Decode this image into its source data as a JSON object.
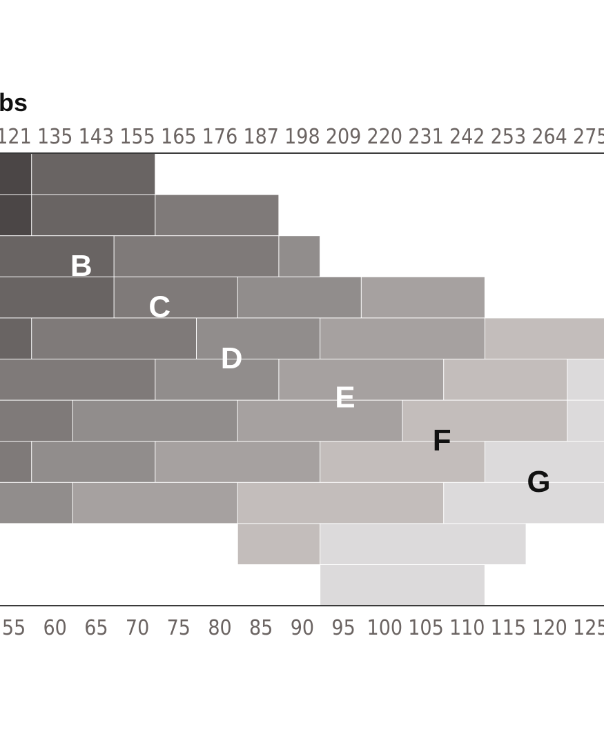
{
  "chart_data": {
    "type": "heatmap",
    "title": "",
    "unit_label": "bs",
    "top_axis": {
      "ticks": [
        "121",
        "135",
        "143",
        "155",
        "165",
        "176",
        "187",
        "198",
        "209",
        "220",
        "231",
        "242",
        "253",
        "264",
        "275"
      ]
    },
    "bottom_axis": {
      "ticks": [
        "55",
        "60",
        "65",
        "70",
        "75",
        "80",
        "85",
        "90",
        "95",
        "100",
        "105",
        "110",
        "115",
        "120",
        "125"
      ]
    },
    "rows": 11,
    "colors": {
      "A": "#4b4646",
      "B": "#696463",
      "C": "#7f7a79",
      "D": "#918d8c",
      "E": "#a6a1a0",
      "F": "#c3bdbb",
      "G": "#dcdadb",
      "axis": "#3a3a3a",
      "tick_text": "#6b6462"
    },
    "blocks": [
      {
        "row": 0,
        "from": 0,
        "to": 1,
        "zone": "A"
      },
      {
        "row": 0,
        "from": 1,
        "to": 4,
        "zone": "B"
      },
      {
        "row": 1,
        "from": 0,
        "to": 1,
        "zone": "A"
      },
      {
        "row": 1,
        "from": 1,
        "to": 4,
        "zone": "B"
      },
      {
        "row": 1,
        "from": 4,
        "to": 7,
        "zone": "C"
      },
      {
        "row": 2,
        "from": 0,
        "to": 3,
        "zone": "B"
      },
      {
        "row": 2,
        "from": 3,
        "to": 7,
        "zone": "C"
      },
      {
        "row": 2,
        "from": 7,
        "to": 8,
        "zone": "D"
      },
      {
        "row": 3,
        "from": 0,
        "to": 3,
        "zone": "B"
      },
      {
        "row": 3,
        "from": 3,
        "to": 6,
        "zone": "C"
      },
      {
        "row": 3,
        "from": 6,
        "to": 9,
        "zone": "D"
      },
      {
        "row": 3,
        "from": 9,
        "to": 12,
        "zone": "E"
      },
      {
        "row": 4,
        "from": 0,
        "to": 1,
        "zone": "B"
      },
      {
        "row": 4,
        "from": 1,
        "to": 5,
        "zone": "C"
      },
      {
        "row": 4,
        "from": 5,
        "to": 8,
        "zone": "D"
      },
      {
        "row": 4,
        "from": 8,
        "to": 12,
        "zone": "E"
      },
      {
        "row": 4,
        "from": 12,
        "to": 15,
        "zone": "F"
      },
      {
        "row": 5,
        "from": 0,
        "to": 4,
        "zone": "C"
      },
      {
        "row": 5,
        "from": 4,
        "to": 7,
        "zone": "D"
      },
      {
        "row": 5,
        "from": 7,
        "to": 11,
        "zone": "E"
      },
      {
        "row": 5,
        "from": 11,
        "to": 14,
        "zone": "F"
      },
      {
        "row": 5,
        "from": 14,
        "to": 15,
        "zone": "G"
      },
      {
        "row": 6,
        "from": 0,
        "to": 2,
        "zone": "C"
      },
      {
        "row": 6,
        "from": 2,
        "to": 6,
        "zone": "D"
      },
      {
        "row": 6,
        "from": 6,
        "to": 10,
        "zone": "E"
      },
      {
        "row": 6,
        "from": 10,
        "to": 14,
        "zone": "F"
      },
      {
        "row": 6,
        "from": 14,
        "to": 15,
        "zone": "G"
      },
      {
        "row": 7,
        "from": 0,
        "to": 1,
        "zone": "C"
      },
      {
        "row": 7,
        "from": 1,
        "to": 4,
        "zone": "D"
      },
      {
        "row": 7,
        "from": 4,
        "to": 8,
        "zone": "E"
      },
      {
        "row": 7,
        "from": 8,
        "to": 12,
        "zone": "F"
      },
      {
        "row": 7,
        "from": 12,
        "to": 15,
        "zone": "G"
      },
      {
        "row": 8,
        "from": 0,
        "to": 2,
        "zone": "D"
      },
      {
        "row": 8,
        "from": 2,
        "to": 6,
        "zone": "E"
      },
      {
        "row": 8,
        "from": 6,
        "to": 11,
        "zone": "F"
      },
      {
        "row": 8,
        "from": 11,
        "to": 15,
        "zone": "G"
      },
      {
        "row": 9,
        "from": 6,
        "to": 8,
        "zone": "F"
      },
      {
        "row": 9,
        "from": 8,
        "to": 13,
        "zone": "G"
      },
      {
        "row": 10,
        "from": 8,
        "to": 12,
        "zone": "G"
      }
    ],
    "zone_labels": [
      {
        "text": "B",
        "row": 2.7,
        "col": 2.2,
        "color": "#ffffff"
      },
      {
        "text": "C",
        "row": 3.7,
        "col": 4.1,
        "color": "#ffffff"
      },
      {
        "text": "D",
        "row": 4.95,
        "col": 5.85,
        "color": "#ffffff"
      },
      {
        "text": "E",
        "row": 5.9,
        "col": 8.6,
        "color": "#ffffff"
      },
      {
        "text": "F",
        "row": 6.95,
        "col": 10.95,
        "color": "#111111"
      },
      {
        "text": "G",
        "row": 7.95,
        "col": 13.3,
        "color": "#111111"
      }
    ]
  }
}
